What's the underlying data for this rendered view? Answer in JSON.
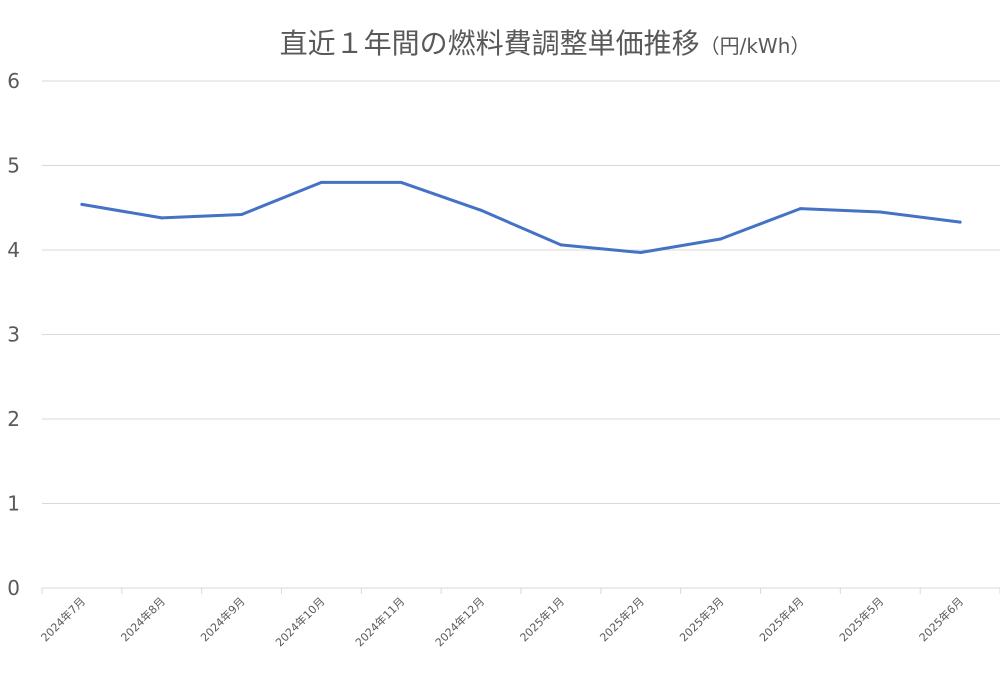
{
  "chart_data": {
    "type": "line",
    "title": "直近１年間の燃料費調整単価推移",
    "unit": "（円/kWh）",
    "categories": [
      "2024年7月",
      "2024年8月",
      "2024年9月",
      "2024年10月",
      "2024年11月",
      "2024年12月",
      "2025年1月",
      "2025年2月",
      "2025年3月",
      "2025年4月",
      "2025年5月",
      "2025年6月"
    ],
    "series": [
      {
        "values": [
          4.54,
          4.38,
          4.42,
          4.8,
          4.8,
          4.47,
          4.06,
          3.97,
          4.13,
          4.49,
          4.45,
          4.33
        ]
      }
    ],
    "ylim": [
      0,
      6
    ],
    "yticks": [
      "0",
      "1",
      "2",
      "3",
      "4",
      "5",
      "6"
    ],
    "grid": true,
    "colors": {
      "line": "#4472C4",
      "grid": "#d9d9d9",
      "text": "#595959"
    }
  }
}
